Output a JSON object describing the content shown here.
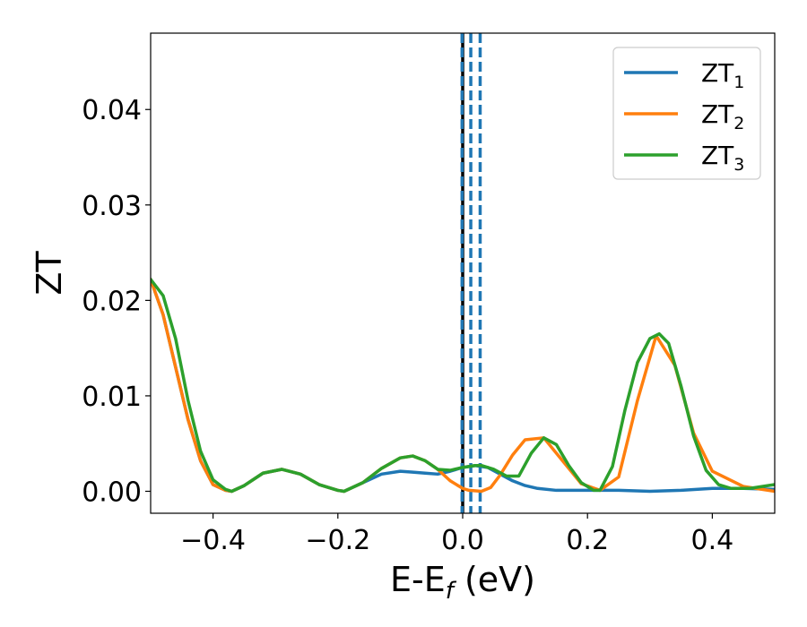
{
  "chart_data": {
    "type": "line",
    "title": "",
    "xlabel": "E-E_f (eV)",
    "ylabel": "ZT",
    "xlim": [
      -0.5,
      0.5
    ],
    "ylim": [
      -0.0023,
      0.048
    ],
    "x_ticks": [
      -0.4,
      -0.2,
      0.0,
      0.2,
      0.4
    ],
    "x_tick_labels": [
      "−0.4",
      "−0.2",
      "0.0",
      "0.2",
      "0.4"
    ],
    "y_ticks": [
      0.0,
      0.01,
      0.02,
      0.03,
      0.04
    ],
    "y_tick_labels": [
      "0.00",
      "0.01",
      "0.02",
      "0.03",
      "0.04"
    ],
    "grid": false,
    "legend_position": "top-right",
    "series": [
      {
        "name": "ZT1",
        "legend_base": "ZT",
        "legend_sub": "1",
        "color": "#1f77b4",
        "x": [
          -0.5,
          -0.48,
          -0.46,
          -0.44,
          -0.42,
          -0.4,
          -0.38,
          -0.37,
          -0.35,
          -0.32,
          -0.29,
          -0.26,
          -0.23,
          -0.2,
          -0.19,
          -0.16,
          -0.13,
          -0.1,
          -0.08,
          -0.06,
          -0.04,
          -0.02,
          0.0,
          0.02,
          0.04,
          0.06,
          0.08,
          0.1,
          0.12,
          0.15,
          0.2,
          0.25,
          0.3,
          0.35,
          0.4,
          0.45,
          0.5
        ],
        "y": [
          0.0222,
          0.0185,
          0.013,
          0.0075,
          0.0032,
          0.0007,
          0.0001,
          0.0,
          0.0006,
          0.0019,
          0.0023,
          0.0018,
          0.0007,
          0.0001,
          0.0,
          0.0009,
          0.0018,
          0.0021,
          0.002,
          0.0019,
          0.0018,
          0.0021,
          0.0025,
          0.0027,
          0.0025,
          0.0018,
          0.0011,
          0.0006,
          0.0003,
          0.0001,
          0.0001,
          0.0001,
          0.0,
          0.0001,
          0.0003,
          0.0003,
          0.0002
        ]
      },
      {
        "name": "ZT2",
        "legend_base": "ZT",
        "legend_sub": "2",
        "color": "#ff7f0e",
        "x": [
          -0.5,
          -0.48,
          -0.46,
          -0.44,
          -0.42,
          -0.4,
          -0.38,
          -0.37,
          -0.35,
          -0.32,
          -0.29,
          -0.26,
          -0.23,
          -0.2,
          -0.19,
          -0.16,
          -0.13,
          -0.1,
          -0.08,
          -0.06,
          -0.04,
          -0.02,
          0.0,
          0.01,
          0.03,
          0.045,
          0.06,
          0.08,
          0.1,
          0.13,
          0.16,
          0.19,
          0.22,
          0.25,
          0.28,
          0.31,
          0.34,
          0.37,
          0.4,
          0.45,
          0.5
        ],
        "y": [
          0.0222,
          0.0185,
          0.013,
          0.0075,
          0.0032,
          0.0007,
          0.0001,
          0.0,
          0.0006,
          0.0019,
          0.0023,
          0.0018,
          0.0007,
          0.0001,
          0.0,
          0.0009,
          0.0024,
          0.0035,
          0.0037,
          0.0032,
          0.0023,
          0.0011,
          0.0003,
          0.0001,
          0.0,
          0.0004,
          0.0017,
          0.0038,
          0.0054,
          0.0056,
          0.0032,
          0.0008,
          0.0001,
          0.0015,
          0.0095,
          0.0163,
          0.0132,
          0.0061,
          0.0021,
          0.0005,
          0.0
        ]
      },
      {
        "name": "ZT3",
        "legend_base": "ZT",
        "legend_sub": "3",
        "color": "#2ca02c",
        "x": [
          -0.5,
          -0.48,
          -0.46,
          -0.44,
          -0.42,
          -0.4,
          -0.38,
          -0.37,
          -0.35,
          -0.32,
          -0.29,
          -0.26,
          -0.23,
          -0.2,
          -0.19,
          -0.16,
          -0.13,
          -0.1,
          -0.08,
          -0.06,
          -0.04,
          -0.02,
          0.0,
          0.02,
          0.03,
          0.05,
          0.07,
          0.09,
          0.11,
          0.13,
          0.15,
          0.17,
          0.19,
          0.21,
          0.22,
          0.24,
          0.26,
          0.28,
          0.3,
          0.315,
          0.33,
          0.35,
          0.37,
          0.39,
          0.41,
          0.43,
          0.46,
          0.5
        ],
        "y": [
          0.0222,
          0.0205,
          0.016,
          0.0095,
          0.0042,
          0.0012,
          0.0002,
          0.0,
          0.0006,
          0.0019,
          0.0023,
          0.0018,
          0.0007,
          0.0001,
          0.0,
          0.0009,
          0.0024,
          0.0035,
          0.0037,
          0.0032,
          0.0023,
          0.0022,
          0.0025,
          0.0027,
          0.0027,
          0.0023,
          0.0016,
          0.0016,
          0.004,
          0.0056,
          0.0049,
          0.0027,
          0.0009,
          0.0001,
          0.0001,
          0.0026,
          0.0085,
          0.0135,
          0.016,
          0.0165,
          0.0155,
          0.011,
          0.0058,
          0.0022,
          0.0007,
          0.0003,
          0.0003,
          0.0007
        ]
      }
    ],
    "vertical_lines": [
      {
        "x": 0.0,
        "color": "#000000",
        "style": "solid"
      },
      {
        "x": -0.001,
        "color": "#1f77b4",
        "style": "dashed"
      },
      {
        "x": 0.013,
        "color": "#1f77b4",
        "style": "dashed"
      },
      {
        "x": 0.028,
        "color": "#1f77b4",
        "style": "dashed"
      }
    ]
  }
}
